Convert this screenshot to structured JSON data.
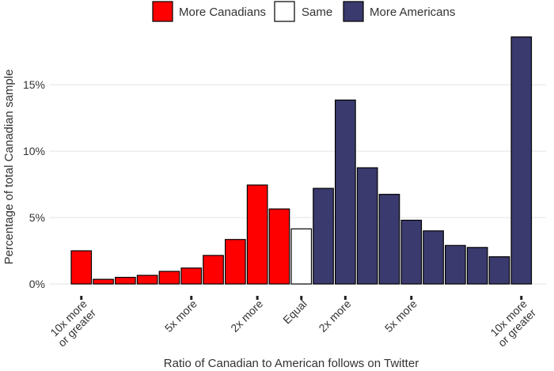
{
  "chart_data": {
    "type": "bar",
    "title": "",
    "xlabel": "Ratio of Canadian to American follows on Twitter",
    "ylabel": "Percentage of total Canadian sample",
    "ylim": [
      0,
      19
    ],
    "grid": "horizontal",
    "legend_position": "top",
    "y_ticks": [
      {
        "value": 0,
        "label": "0%"
      },
      {
        "value": 5,
        "label": "5%"
      },
      {
        "value": 10,
        "label": "10%"
      },
      {
        "value": 15,
        "label": "15%"
      }
    ],
    "legend": [
      {
        "label": "More Canadians",
        "color": "#FF0000"
      },
      {
        "label": "Same",
        "color": "#FFFFFF"
      },
      {
        "label": "More Americans",
        "color": "#3A3A6E"
      }
    ],
    "bars": [
      {
        "value": 2.5,
        "group": "More Canadians"
      },
      {
        "value": 0.35,
        "group": "More Canadians"
      },
      {
        "value": 0.5,
        "group": "More Canadians"
      },
      {
        "value": 0.65,
        "group": "More Canadians"
      },
      {
        "value": 0.95,
        "group": "More Canadians"
      },
      {
        "value": 1.2,
        "group": "More Canadians"
      },
      {
        "value": 2.15,
        "group": "More Canadians"
      },
      {
        "value": 3.35,
        "group": "More Canadians"
      },
      {
        "value": 7.45,
        "group": "More Canadians"
      },
      {
        "value": 5.65,
        "group": "More Canadians"
      },
      {
        "value": 4.15,
        "group": "Same"
      },
      {
        "value": 7.2,
        "group": "More Americans"
      },
      {
        "value": 13.85,
        "group": "More Americans"
      },
      {
        "value": 8.75,
        "group": "More Americans"
      },
      {
        "value": 6.75,
        "group": "More Americans"
      },
      {
        "value": 4.8,
        "group": "More Americans"
      },
      {
        "value": 4.0,
        "group": "More Americans"
      },
      {
        "value": 2.9,
        "group": "More Americans"
      },
      {
        "value": 2.75,
        "group": "More Americans"
      },
      {
        "value": 2.05,
        "group": "More Americans"
      },
      {
        "value": 18.6,
        "group": "More Americans"
      }
    ],
    "x_ticks": [
      {
        "bar_index": 0,
        "lines": [
          "10x more",
          "or greater"
        ]
      },
      {
        "bar_index": 5,
        "lines": [
          "5x more"
        ]
      },
      {
        "bar_index": 8,
        "lines": [
          "2x more"
        ]
      },
      {
        "bar_index": 10,
        "lines": [
          "Equal"
        ]
      },
      {
        "bar_index": 12,
        "lines": [
          "2x more"
        ]
      },
      {
        "bar_index": 15,
        "lines": [
          "5x more"
        ]
      },
      {
        "bar_index": 20,
        "lines": [
          "10x more",
          "or greater"
        ]
      }
    ]
  }
}
